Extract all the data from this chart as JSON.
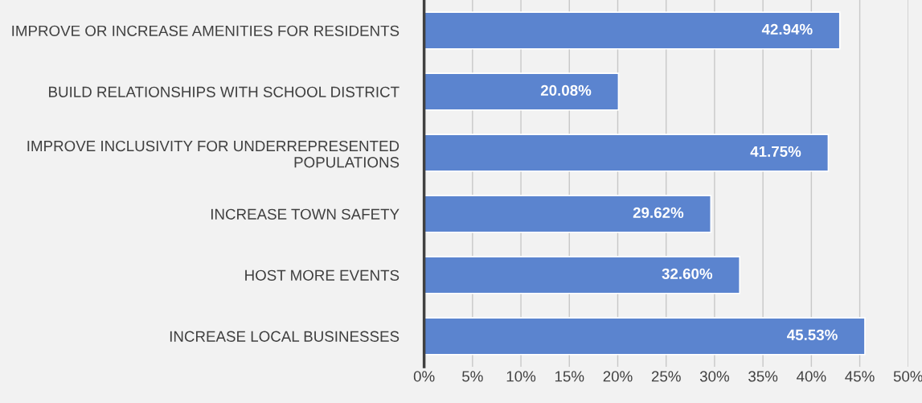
{
  "chart_data": {
    "type": "bar",
    "orientation": "horizontal",
    "categories": [
      "IMPROVE OR INCREASE AMENITIES FOR RESIDENTS",
      "BUILD RELATIONSHIPS WITH SCHOOL DISTRICT",
      "IMPROVE INCLUSIVITY FOR UNDERREPRESENTED\nPOPULATIONS",
      "INCREASE TOWN SAFETY",
      "HOST MORE EVENTS",
      "INCREASE LOCAL BUSINESSES"
    ],
    "values": [
      42.94,
      20.08,
      41.75,
      29.62,
      32.6,
      45.53
    ],
    "value_labels": [
      "42.94%",
      "20.08%",
      "41.75%",
      "29.62%",
      "32.60%",
      "45.53%"
    ],
    "color": "#5b84cf",
    "xlim": [
      0,
      50
    ],
    "xticks": [
      {
        "value": 0,
        "label": "0%"
      },
      {
        "value": 5,
        "label": "5%"
      },
      {
        "value": 10,
        "label": "10%"
      },
      {
        "value": 15,
        "label": "15%"
      },
      {
        "value": 20,
        "label": "20%"
      },
      {
        "value": 25,
        "label": "25%"
      },
      {
        "value": 30,
        "label": "30%"
      },
      {
        "value": 35,
        "label": "35%"
      },
      {
        "value": 40,
        "label": "40%"
      },
      {
        "value": 45,
        "label": "45%"
      },
      {
        "value": 50,
        "label": "50%"
      }
    ],
    "grid": "x"
  }
}
